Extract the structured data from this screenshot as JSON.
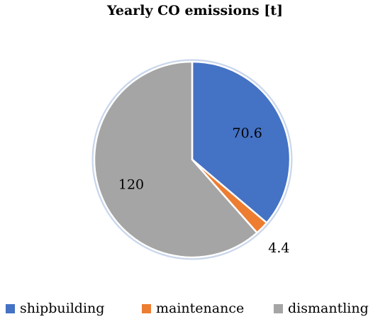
{
  "chart_data": {
    "type": "pie",
    "title": "Yearly CO emissions [t]",
    "categories": [
      "shipbuilding",
      "maintenance",
      "dismantling"
    ],
    "values": [
      70.6,
      4.4,
      120
    ],
    "data_labels": [
      "70.6",
      "4.4",
      "120"
    ],
    "colors": [
      "#4472C4",
      "#ED7D31",
      "#A5A5A5"
    ],
    "legend_position": "bottom",
    "start_angle": "12 o'clock",
    "direction": "clockwise"
  }
}
